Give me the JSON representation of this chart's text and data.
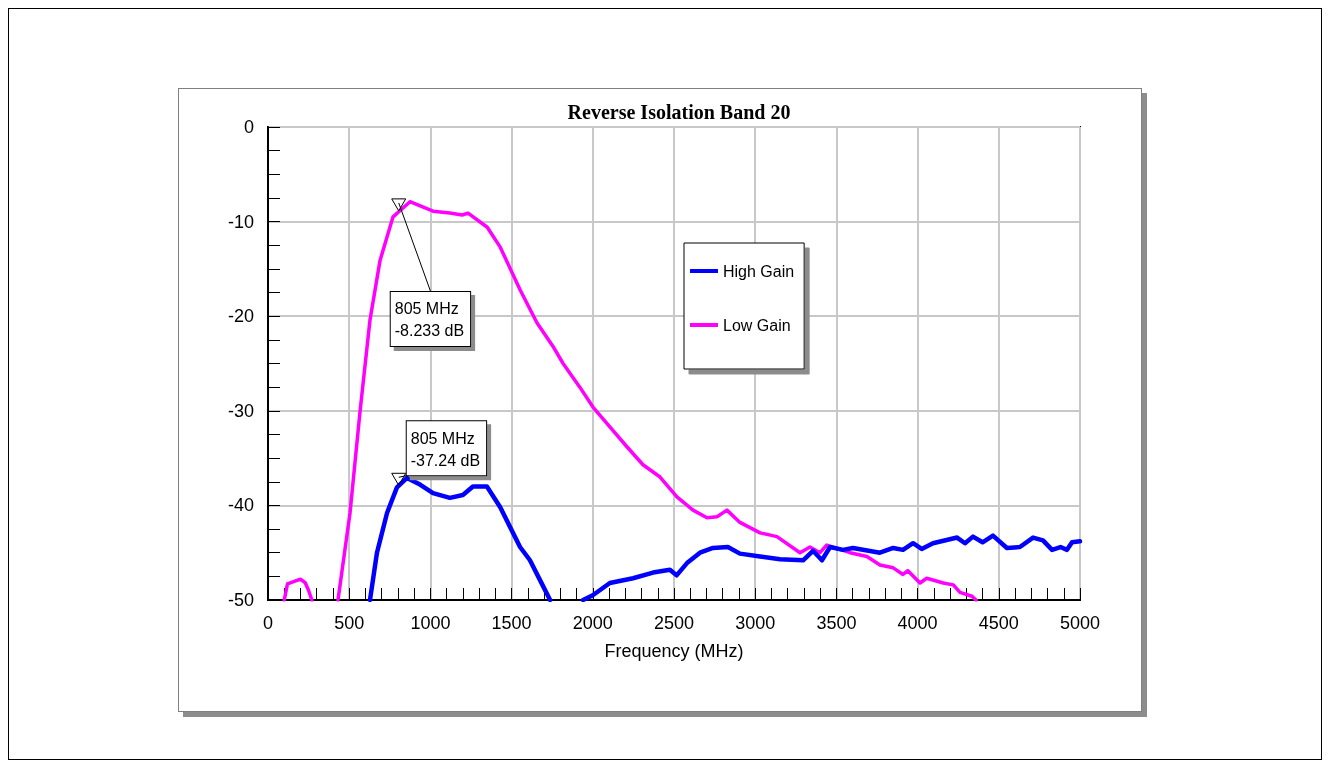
{
  "chart_data": {
    "type": "line",
    "title": "Reverse Isolation Band 20",
    "xlabel": "Frequency (MHz)",
    "xlim": [
      0,
      5000
    ],
    "xticks": [
      0,
      {
        "value": 100,
        "label": null
      },
      {
        "value": 200,
        "label": null
      },
      {
        "value": 300,
        "label": null
      },
      {
        "value": 400,
        "label": null
      },
      500,
      {
        "value": 600,
        "label": null
      },
      {
        "value": 700,
        "label": null
      },
      {
        "value": 800,
        "label": null
      },
      {
        "value": 900,
        "label": null
      },
      1000,
      {
        "value": 1100,
        "label": null
      },
      {
        "value": 1200,
        "label": null
      },
      {
        "value": 1300,
        "label": null
      },
      {
        "value": 1400,
        "label": null
      },
      1500,
      {
        "value": 1600,
        "label": null
      },
      {
        "value": 1700,
        "label": null
      },
      {
        "value": 1800,
        "label": null
      },
      {
        "value": 1900,
        "label": null
      },
      2000,
      {
        "value": 2100,
        "label": null
      },
      {
        "value": 2200,
        "label": null
      },
      {
        "value": 2300,
        "label": null
      },
      {
        "value": 2400,
        "label": null
      },
      2500,
      {
        "value": 2600,
        "label": null
      },
      {
        "value": 2700,
        "label": null
      },
      {
        "value": 2800,
        "label": null
      },
      {
        "value": 2900,
        "label": null
      },
      3000,
      {
        "value": 3100,
        "label": null
      },
      {
        "value": 3200,
        "label": null
      },
      {
        "value": 3300,
        "label": null
      },
      {
        "value": 3400,
        "label": null
      },
      3500,
      {
        "value": 3600,
        "label": null
      },
      {
        "value": 3700,
        "label": null
      },
      {
        "value": 3800,
        "label": null
      },
      {
        "value": 3900,
        "label": null
      },
      4000,
      {
        "value": 4100,
        "label": null
      },
      {
        "value": 4200,
        "label": null
      },
      {
        "value": 4300,
        "label": null
      },
      {
        "value": 4400,
        "label": null
      },
      4500,
      {
        "value": 4600,
        "label": null
      },
      {
        "value": 4700,
        "label": null
      },
      {
        "value": 4800,
        "label": null
      },
      {
        "value": 4900,
        "label": null
      },
      5000
    ],
    "ylim": [
      -50,
      0
    ],
    "yticks": [
      -50,
      {
        "value": -47.5,
        "label": null
      },
      {
        "value": -45,
        "label": null
      },
      {
        "value": -42.5,
        "label": null
      },
      -40,
      {
        "value": -37.5,
        "label": null
      },
      {
        "value": -35,
        "label": null
      },
      {
        "value": -32.5,
        "label": null
      },
      -30,
      {
        "value": -27.5,
        "label": null
      },
      {
        "value": -25,
        "label": null
      },
      {
        "value": -22.5,
        "label": null
      },
      -20,
      {
        "value": -17.5,
        "label": null
      },
      {
        "value": -15,
        "label": null
      },
      {
        "value": -12.5,
        "label": null
      },
      -10,
      {
        "value": -7.5,
        "label": null
      },
      {
        "value": -5,
        "label": null
      },
      {
        "value": -2.5,
        "label": null
      },
      0
    ],
    "grid": true,
    "legend": "top right",
    "marker": "none",
    "line_style": "solid",
    "series": [
      {
        "name": "High Gain",
        "color": "#0000ff",
        "x": [
          628,
          671,
          733,
          794,
          856,
          936,
          1016,
          1120,
          1200,
          1262,
          1348,
          1430,
          1552,
          1613,
          1675,
          1737,
          1850,
          1940,
          2000,
          2105,
          2248,
          2371,
          2475,
          2516,
          2580,
          2660,
          2740,
          2832,
          2906,
          3030,
          3153,
          3295,
          3356,
          3411,
          3461,
          3541,
          3602,
          3768,
          3850,
          3910,
          3972,
          4025,
          4095,
          4243,
          4292,
          4341,
          4400,
          4464,
          4550,
          4630,
          4711,
          4772,
          4828,
          4880,
          4920,
          4951,
          5000
        ],
        "values": [
          -50,
          -45,
          -40.8,
          -38.1,
          -37.1,
          -37.8,
          -38.7,
          -39.2,
          -38.9,
          -38,
          -38,
          -40.2,
          -44.4,
          -45.8,
          -47.9,
          -50,
          null,
          -50,
          -49.5,
          -48.2,
          -47.7,
          -47.1,
          -46.8,
          -47.4,
          -46.1,
          -45,
          -44.5,
          -44.4,
          -45.1,
          -45.4,
          -45.7,
          -45.8,
          -44.8,
          -45.8,
          -44.4,
          -44.7,
          -44.5,
          -45,
          -44.5,
          -44.7,
          -44,
          -44.6,
          -44,
          -43.4,
          -44,
          -43.3,
          -43.9,
          -43.2,
          -44.5,
          -44.4,
          -43.4,
          -43.7,
          -44.7,
          -44.4,
          -44.7,
          -43.9,
          -43.8
        ]
      },
      {
        "name": "Low Gain",
        "color": "#ff00ff",
        "x": [
          100,
          120,
          200,
          230,
          250,
          270,
          350,
          431,
          505,
          566,
          628,
          690,
          770,
          874,
          1016,
          1120,
          1195,
          1232,
          1350,
          1430,
          1552,
          1656,
          1755,
          1817,
          1920,
          2001,
          2105,
          2210,
          2309,
          2414,
          2518,
          2617,
          2703,
          2765,
          2826,
          2906,
          3030,
          3134,
          3276,
          3337,
          3399,
          3440,
          3584,
          3688,
          3768,
          3850,
          3910,
          3940,
          4015,
          4056,
          4158,
          4220,
          4261,
          4335,
          4360
        ],
        "values": [
          -50,
          -48.3,
          -47.8,
          -48.2,
          -49,
          -50,
          null,
          -50,
          -40.8,
          -30.2,
          -20.4,
          -14.1,
          -9.5,
          -7.9,
          -8.9,
          -9.1,
          -9.3,
          -9.1,
          -10.6,
          -12.7,
          -17.2,
          -20.7,
          -23.2,
          -25,
          -27.5,
          -29.6,
          -31.7,
          -33.8,
          -35.7,
          -37,
          -39.1,
          -40.5,
          -41.3,
          -41.2,
          -40.5,
          -41.8,
          -42.9,
          -43.3,
          -45,
          -44.4,
          -45,
          -44.2,
          -45,
          -45.4,
          -46.3,
          -46.6,
          -47.3,
          -46.9,
          -48.2,
          -47.7,
          -48.2,
          -48.4,
          -49.2,
          -49.6,
          -50
        ]
      }
    ],
    "annotations": [
      {
        "text": "805 MHz\n-8.233 dB",
        "x": 805,
        "y": -8.233
      },
      {
        "text": "805 MHz\n-37.24 dB",
        "x": 805,
        "y": -37.24
      }
    ]
  }
}
